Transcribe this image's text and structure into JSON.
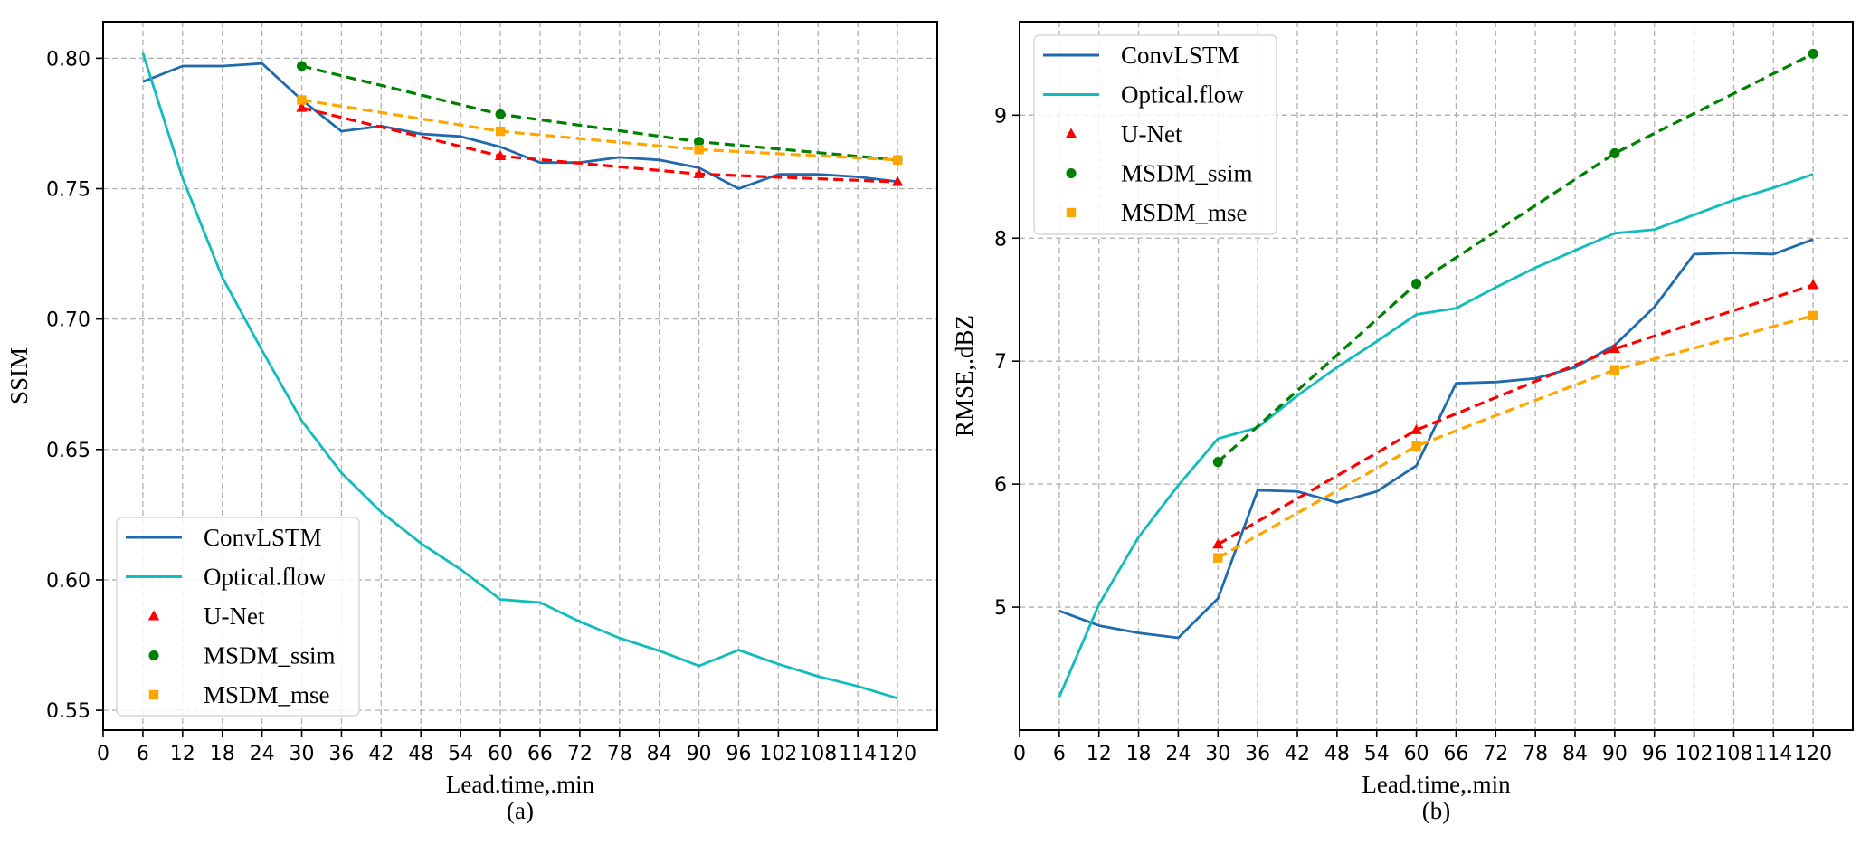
{
  "chart_data": [
    {
      "id": "a",
      "type": "line",
      "caption": "(a)",
      "xlabel": "Lead.time,.min",
      "ylabel": "SSIM",
      "xlim": [
        0,
        126
      ],
      "ylim": [
        0.5424,
        0.814
      ],
      "xticks": [
        0,
        6,
        12,
        18,
        24,
        30,
        36,
        42,
        48,
        54,
        60,
        66,
        72,
        78,
        84,
        90,
        96,
        102,
        108,
        114,
        120
      ],
      "yticks": [
        0.55,
        0.6,
        0.65,
        0.7,
        0.75,
        0.8
      ],
      "ytick_labels": [
        "0.55",
        "0.60",
        "0.65",
        "0.70",
        "0.75",
        "0.80"
      ],
      "grid": true,
      "legend_position": "lower-left",
      "series": [
        {
          "name": "ConvLSTM",
          "style": "solid",
          "marker": "none",
          "color": "#1f6aad",
          "x": [
            6,
            12,
            18,
            24,
            30,
            36,
            42,
            48,
            54,
            60,
            66,
            72,
            78,
            84,
            90,
            96,
            102,
            108,
            114,
            120
          ],
          "y": [
            0.791,
            0.797,
            0.797,
            0.798,
            0.784,
            0.772,
            0.774,
            0.771,
            0.77,
            0.766,
            0.76,
            0.76,
            0.762,
            0.761,
            0.758,
            0.75,
            0.7555,
            0.7555,
            0.7545,
            0.7527
          ]
        },
        {
          "name": "Optical.flow",
          "style": "solid",
          "marker": "none",
          "color": "#10bcbc",
          "x": [
            6,
            12,
            18,
            24,
            30,
            36,
            42,
            48,
            54,
            60,
            66,
            72,
            78,
            84,
            90,
            96,
            102,
            108,
            114,
            120
          ],
          "y": [
            0.802,
            0.754,
            0.716,
            0.688,
            0.661,
            0.641,
            0.626,
            0.614,
            0.604,
            0.5925,
            0.5913,
            0.584,
            0.5777,
            0.5728,
            0.567,
            0.5731,
            0.5677,
            0.563,
            0.5592,
            0.5546
          ]
        },
        {
          "name": "U-Net",
          "style": "dashed",
          "marker": "triangle",
          "color": "#ff0000",
          "x": [
            30,
            60,
            90,
            120
          ],
          "y": [
            0.781,
            0.7625,
            0.7556,
            0.7526
          ]
        },
        {
          "name": "MSDM_ssim",
          "style": "dashed",
          "marker": "circle",
          "color": "#008000",
          "x": [
            30,
            60,
            90,
            120
          ],
          "y": [
            0.797,
            0.7785,
            0.768,
            0.761
          ]
        },
        {
          "name": "MSDM_mse",
          "style": "dashed",
          "marker": "square",
          "color": "#ffa500",
          "x": [
            30,
            60,
            90,
            120
          ],
          "y": [
            0.784,
            0.772,
            0.765,
            0.761
          ]
        }
      ]
    },
    {
      "id": "b",
      "type": "line",
      "caption": "(b)",
      "xlabel": "Lead.time,.min",
      "ylabel": "RMSE,.dBZ",
      "xlim": [
        0,
        126
      ],
      "ylim": [
        4.0,
        9.76
      ],
      "xticks": [
        0,
        6,
        12,
        18,
        24,
        30,
        36,
        42,
        48,
        54,
        60,
        66,
        72,
        78,
        84,
        90,
        96,
        102,
        108,
        114,
        120
      ],
      "yticks": [
        5,
        6,
        7,
        8,
        9
      ],
      "ytick_labels": [
        "5",
        "6",
        "7",
        "8",
        "9"
      ],
      "grid": true,
      "legend_position": "upper-left",
      "series": [
        {
          "name": "ConvLSTM",
          "style": "solid",
          "marker": "none",
          "color": "#1f6aad",
          "x": [
            6,
            12,
            18,
            24,
            30,
            36,
            42,
            48,
            54,
            60,
            66,
            72,
            78,
            84,
            90,
            96,
            102,
            108,
            114,
            120
          ],
          "y": [
            4.97,
            4.85,
            4.79,
            4.75,
            5.07,
            5.95,
            5.94,
            5.85,
            5.94,
            6.15,
            6.82,
            6.83,
            6.86,
            6.95,
            7.13,
            7.44,
            7.87,
            7.88,
            7.87,
            7.99
          ]
        },
        {
          "name": "Optical.flow",
          "style": "solid",
          "marker": "none",
          "color": "#10bcbc",
          "x": [
            6,
            12,
            18,
            24,
            30,
            36,
            42,
            48,
            54,
            60,
            66,
            72,
            78,
            84,
            90,
            96,
            102,
            108,
            114,
            120
          ],
          "y": [
            4.27,
            5.02,
            5.57,
            5.99,
            6.37,
            6.46,
            6.72,
            6.95,
            7.16,
            7.38,
            7.43,
            7.6,
            7.76,
            7.9,
            8.04,
            8.07,
            8.19,
            8.31,
            8.41,
            8.52
          ]
        },
        {
          "name": "U-Net",
          "style": "dashed",
          "marker": "triangle",
          "color": "#ff0000",
          "x": [
            30,
            60,
            90,
            120
          ],
          "y": [
            5.51,
            6.44,
            7.1,
            7.62
          ]
        },
        {
          "name": "MSDM_ssim",
          "style": "dashed",
          "marker": "circle",
          "color": "#008000",
          "x": [
            30,
            60,
            90,
            120
          ],
          "y": [
            6.18,
            7.63,
            8.69,
            9.5
          ]
        },
        {
          "name": "MSDM_mse",
          "style": "dashed",
          "marker": "square",
          "color": "#ffa500",
          "x": [
            30,
            60,
            90,
            120
          ],
          "y": [
            5.4,
            6.31,
            6.93,
            7.37
          ]
        }
      ]
    }
  ]
}
